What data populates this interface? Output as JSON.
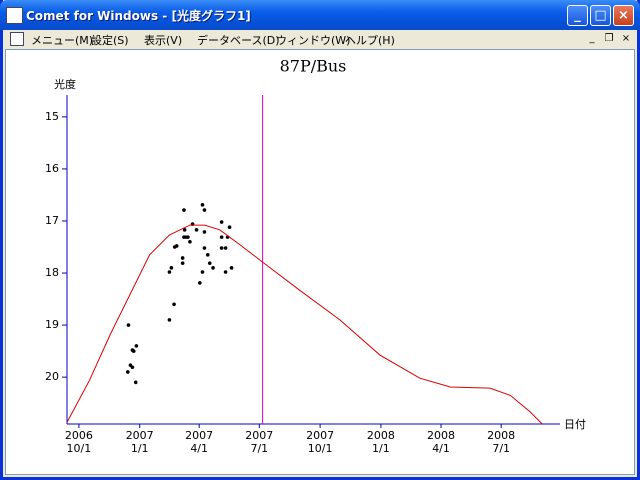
{
  "window": {
    "title": "Comet for Windows - [光度グラフ1]",
    "menu": [
      "メニュー(M)",
      "設定(S)",
      "表示(V)",
      "データベース(D)",
      "ウィンドウ(W)",
      "ヘルプ(H)"
    ]
  },
  "chart_data": {
    "type": "scatter",
    "title": "87P/Bus",
    "y_label": "光度",
    "x_label": "日付",
    "ylim": [
      14.58,
      20.9
    ],
    "y_inverted": true,
    "yticks": [
      15,
      16,
      17,
      18,
      19,
      20
    ],
    "xlim": [
      "2006-09-13",
      "2008-09-28"
    ],
    "xticks": [
      {
        "value": "2006-10-01",
        "label": "2006\n10/1"
      },
      {
        "value": "2007-01-01",
        "label": "2007\n1/1"
      },
      {
        "value": "2007-04-01",
        "label": "2007\n4/1"
      },
      {
        "value": "2007-07-01",
        "label": "2007\n7/1"
      },
      {
        "value": "2007-10-01",
        "label": "2007\n10/1"
      },
      {
        "value": "2008-01-01",
        "label": "2008\n1/1"
      },
      {
        "value": "2008-04-01",
        "label": "2008\n4/1"
      },
      {
        "value": "2008-07-01",
        "label": "2008\n7/1"
      }
    ],
    "axis_color": "#0000cc",
    "marker_date": "2007-07-06",
    "marker_color": "#cc00cc",
    "series": [
      {
        "type": "scatter",
        "color": "#000000",
        "x": [
          "2006-12-15",
          "2006-12-21",
          "2006-12-23",
          "2006-12-18",
          "2006-12-21",
          "2006-12-14",
          "2006-12-26",
          "2006-12-27",
          "2007-02-15",
          "2007-02-22",
          "2007-02-15",
          "2007-02-18",
          "2007-02-23",
          "2007-02-26",
          "2007-03-09",
          "2007-03-10",
          "2007-03-09",
          "2007-03-12",
          "2007-03-15",
          "2007-03-18",
          "2007-03-07",
          "2007-03-07",
          "2007-03-22",
          "2007-03-28",
          "2007-04-06",
          "2007-04-09",
          "2007-04-09",
          "2007-04-09",
          "2007-04-06",
          "2007-04-02",
          "2007-04-14",
          "2007-04-17",
          "2007-04-22",
          "2007-05-05",
          "2007-05-05",
          "2007-05-05",
          "2007-05-11",
          "2007-05-11",
          "2007-05-14",
          "2007-05-17",
          "2007-05-20"
        ],
        "values": [
          19.0,
          19.48,
          19.5,
          19.77,
          19.81,
          19.9,
          20.1,
          19.4,
          18.9,
          18.6,
          17.98,
          17.9,
          17.5,
          17.48,
          16.79,
          17.17,
          17.31,
          17.31,
          17.31,
          17.4,
          17.71,
          17.81,
          17.06,
          17.17,
          16.69,
          16.79,
          17.21,
          17.52,
          17.98,
          18.19,
          17.65,
          17.81,
          17.9,
          17.02,
          17.31,
          17.52,
          17.52,
          17.98,
          17.31,
          17.12,
          17.9
        ]
      },
      {
        "type": "line",
        "color": "#dd0000",
        "x": [
          "2006-09-13",
          "2006-10-17",
          "2006-11-17",
          "2006-12-17",
          "2007-01-16",
          "2007-02-15",
          "2007-03-18",
          "2007-04-09",
          "2007-05-02",
          "2007-06-02",
          "2007-07-06",
          "2007-08-31",
          "2007-10-31",
          "2007-12-31",
          "2008-02-29",
          "2008-04-15",
          "2008-06-14",
          "2008-07-15",
          "2008-08-14",
          "2008-09-01"
        ],
        "values": [
          20.87,
          20.06,
          19.19,
          18.42,
          17.65,
          17.27,
          17.08,
          17.08,
          17.17,
          17.46,
          17.79,
          18.33,
          18.9,
          19.58,
          20.02,
          20.19,
          20.21,
          20.35,
          20.67,
          20.9
        ]
      }
    ]
  }
}
